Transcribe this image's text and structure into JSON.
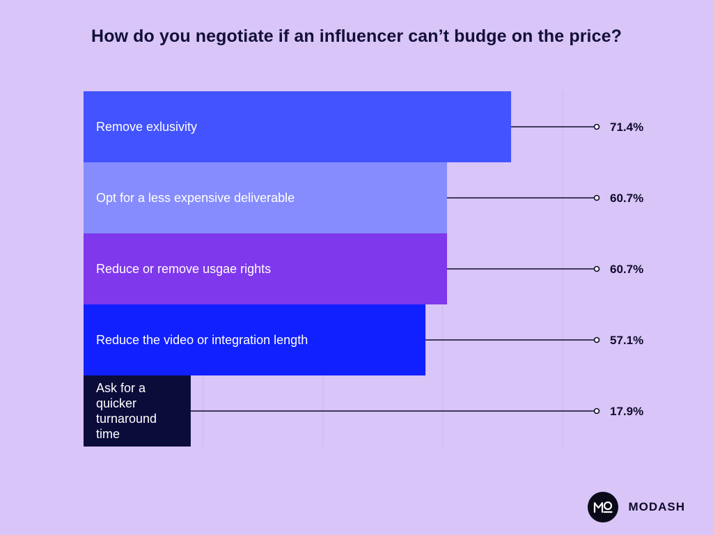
{
  "chart_data": {
    "type": "bar",
    "orientation": "horizontal",
    "title": "How do you negotiate if an influencer can’t budge on the price?",
    "categories": [
      "Remove exlusivity",
      "Opt for a less expensive deliverable",
      "Reduce or remove usgae rights",
      "Reduce the video or integration length",
      "Ask for a quicker turnaround time"
    ],
    "values": [
      71.4,
      60.7,
      60.7,
      57.1,
      17.9
    ],
    "value_labels": [
      "71.4%",
      "60.7%",
      "60.7%",
      "57.1%",
      "17.9%"
    ],
    "colors": [
      "#4353ff",
      "#868cfe",
      "#7f38ec",
      "#1120ff",
      "#0b0c3a"
    ],
    "xlim": [
      0,
      100
    ],
    "xlabel": "",
    "ylabel": "",
    "grid": true
  },
  "brand": {
    "name": "MODASH",
    "logo_text": "MO"
  }
}
